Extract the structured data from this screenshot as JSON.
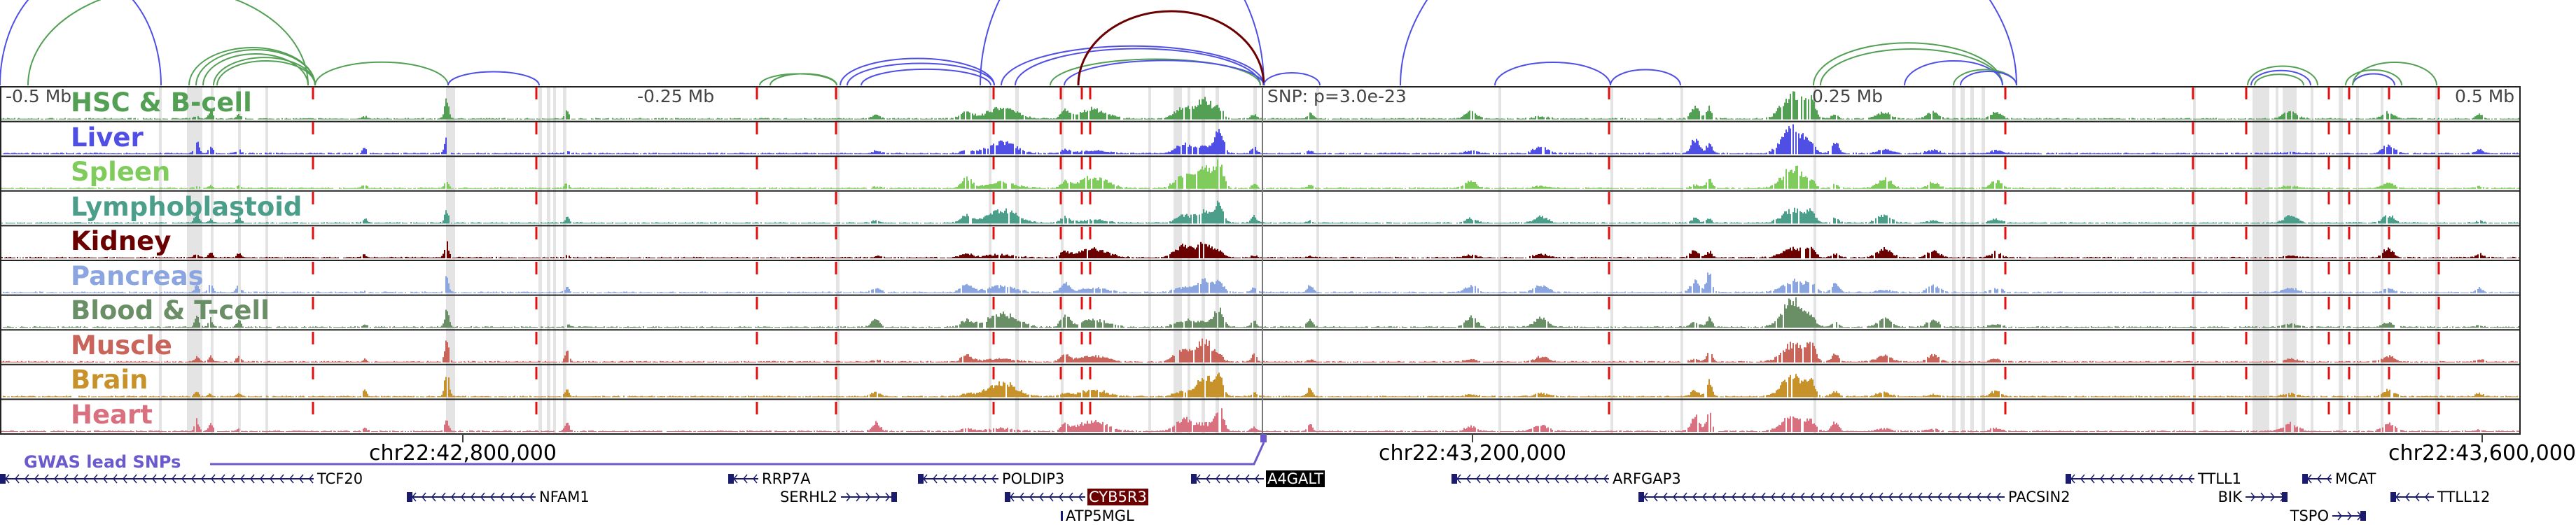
{
  "axis_top": {
    "left_label": "-0.5 Mb",
    "mid_left_label": "-0.25 Mb",
    "snp_label": "SNP: p=3.0e-23",
    "mid_right_label": "0.25 Mb",
    "right_label": "0.5 Mb"
  },
  "tracks": [
    {
      "name": "HSC & B-cell",
      "color": "#53a055"
    },
    {
      "name": "Liver",
      "color": "#4f4fe6"
    },
    {
      "name": "Spleen",
      "color": "#7fcc5c"
    },
    {
      "name": "Lymphoblastoid",
      "color": "#4b9e8a"
    },
    {
      "name": "Kidney",
      "color": "#6b0000"
    },
    {
      "name": "Pancreas",
      "color": "#8aa5e0"
    },
    {
      "name": "Blood & T-cell",
      "color": "#6a8f66"
    },
    {
      "name": "Muscle",
      "color": "#c8645a"
    },
    {
      "name": "Brain",
      "color": "#c8922a"
    },
    {
      "name": "Heart",
      "color": "#d9707f"
    }
  ],
  "axis_bottom": {
    "ticks": [
      "chr22:42,800,000",
      "chr22:43,200,000",
      "chr22:43,600,000"
    ]
  },
  "gwas": {
    "label": "GWAS lead SNPs",
    "color": "#6a5acd"
  },
  "genes": [
    {
      "name": "TCF20",
      "strand": "-"
    },
    {
      "name": "NFAM1",
      "strand": "-"
    },
    {
      "name": "RRP7A",
      "strand": "-"
    },
    {
      "name": "SERHL2",
      "strand": "+"
    },
    {
      "name": "POLDIP3",
      "strand": "-"
    },
    {
      "name": "CYB5R3",
      "strand": "-",
      "highlight": "#6b0000"
    },
    {
      "name": "ATP5MGL",
      "strand": "-"
    },
    {
      "name": "A4GALT",
      "strand": "-",
      "highlight": "#000000"
    },
    {
      "name": "ARFGAP3",
      "strand": "-"
    },
    {
      "name": "PACSIN2",
      "strand": "-"
    },
    {
      "name": "TTLL1",
      "strand": "-"
    },
    {
      "name": "BIK",
      "strand": "+"
    },
    {
      "name": "MCAT",
      "strand": "-"
    },
    {
      "name": "TSPO",
      "strand": "+"
    },
    {
      "name": "TTLL12",
      "strand": "-"
    }
  ]
}
